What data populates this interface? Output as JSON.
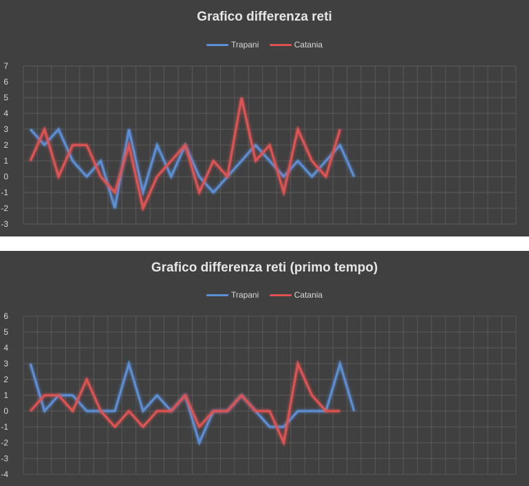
{
  "colors": {
    "trapani": "#5b8fd6",
    "catania": "#e05252",
    "grid": "#5a5a5a",
    "text": "#d9d9d9"
  },
  "chart_data": [
    {
      "type": "line",
      "title": "Grafico differenza reti",
      "legend_placement": "top",
      "grid": true,
      "ylim": [
        -3,
        7
      ],
      "yticks": [
        7,
        6,
        5,
        4,
        3,
        2,
        1,
        0,
        -1,
        -2,
        -3
      ],
      "x_slots": 35,
      "series": [
        {
          "name": "Trapani",
          "color": "#5b8fd6",
          "values": [
            3,
            2,
            3,
            1,
            0,
            1,
            -2,
            3,
            -1,
            2,
            0,
            2,
            0,
            -1,
            0,
            1,
            2,
            1,
            0,
            1,
            0,
            1,
            2,
            0
          ]
        },
        {
          "name": "Catania",
          "color": "#e05252",
          "values": [
            1,
            3,
            0,
            2,
            2,
            0,
            -1,
            2,
            -2,
            0,
            1,
            2,
            -1,
            1,
            0,
            5,
            1,
            2,
            -1,
            3,
            1,
            0,
            3
          ]
        }
      ]
    },
    {
      "type": "line",
      "title": "Grafico differenza reti (primo tempo)",
      "legend_placement": "top",
      "grid": true,
      "ylim": [
        -4,
        6
      ],
      "yticks": [
        6,
        5,
        4,
        3,
        2,
        1,
        0,
        -1,
        -2,
        -3,
        -4
      ],
      "x_slots": 35,
      "series": [
        {
          "name": "Trapani",
          "color": "#5b8fd6",
          "values": [
            3,
            0,
            1,
            1,
            0,
            0,
            0,
            3,
            0,
            1,
            0,
            1,
            -2,
            0,
            0,
            1,
            0,
            -1,
            -1,
            0,
            0,
            0,
            3,
            0
          ]
        },
        {
          "name": "Catania",
          "color": "#e05252",
          "values": [
            0,
            1,
            1,
            0,
            2,
            0,
            -1,
            0,
            -1,
            0,
            0,
            1,
            -1,
            0,
            0,
            1,
            0,
            0,
            -2,
            3,
            1,
            0,
            0
          ]
        }
      ]
    }
  ]
}
